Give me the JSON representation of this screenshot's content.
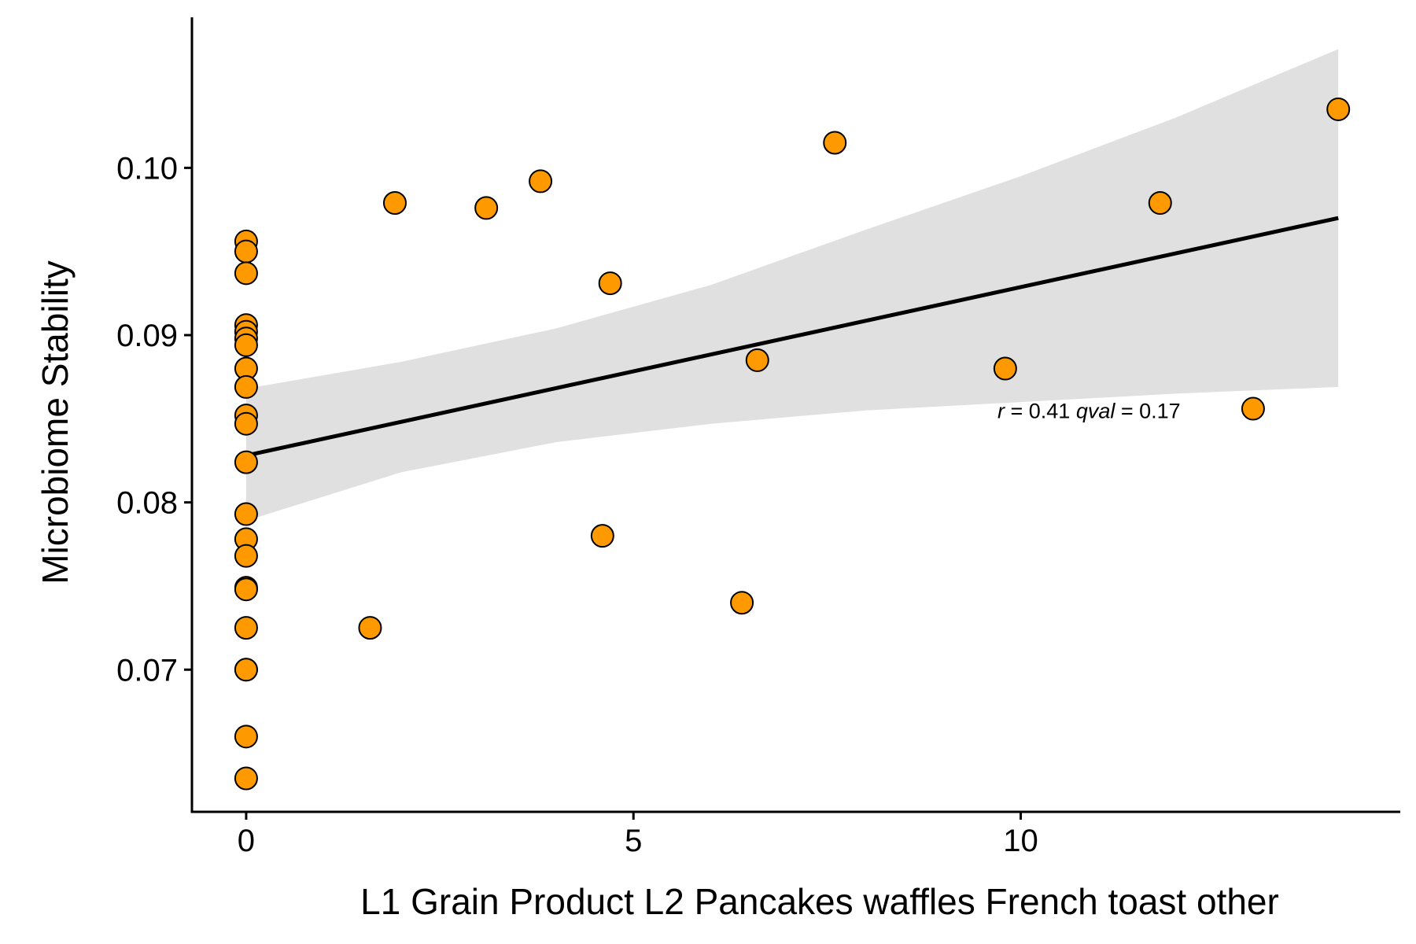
{
  "chart_data": {
    "type": "scatter",
    "title": "",
    "xlabel": "L1 Grain Product  L2 Pancakes waffles French toast other",
    "ylabel": "Microbiome Stability",
    "xlim": [
      -0.7,
      14.9
    ],
    "ylim": [
      0.0615,
      0.109
    ],
    "x_ticks": [
      0,
      5,
      10
    ],
    "x_tick_labels": [
      "0",
      "5",
      "10"
    ],
    "y_ticks": [
      0.07,
      0.08,
      0.09,
      0.1
    ],
    "y_tick_labels": [
      "0.07",
      "0.08",
      "0.09",
      "0.10"
    ],
    "grid": false,
    "legend": "none",
    "point_color": "#FF9900",
    "point_edge_color": "#000000",
    "line_color": "#000000",
    "band_color": "#E0E0E0",
    "points": {
      "x": [
        0,
        0,
        0,
        0,
        0,
        0,
        0,
        0,
        0,
        0,
        0,
        0,
        0,
        0,
        0,
        0,
        0,
        0,
        0,
        0,
        0,
        0,
        1.6,
        1.92,
        3.1,
        3.8,
        4.6,
        4.7,
        6.4,
        6.6,
        7.6,
        9.8,
        11.8,
        13.0,
        14.1
      ],
      "y": [
        0.0956,
        0.095,
        0.0937,
        0.0906,
        0.0902,
        0.0898,
        0.0894,
        0.088,
        0.0869,
        0.0852,
        0.0847,
        0.0824,
        0.0793,
        0.0778,
        0.0768,
        0.0749,
        0.0748,
        0.0725,
        0.07,
        0.066,
        0.0635,
        0.07,
        0.0725,
        0.0979,
        0.0976,
        0.0992,
        0.078,
        0.0931,
        0.074,
        0.0885,
        0.1015,
        0.088,
        0.0979,
        0.0856,
        0.1035
      ]
    },
    "regression": {
      "x": [
        0,
        14.1
      ],
      "y": [
        0.0828,
        0.097
      ]
    },
    "confidence_band": {
      "x": [
        0,
        2,
        4,
        6,
        8,
        10,
        12,
        14.1
      ],
      "upper": [
        0.0868,
        0.0884,
        0.0904,
        0.093,
        0.0963,
        0.0995,
        0.103,
        0.1071
      ],
      "lower": [
        0.0789,
        0.0818,
        0.0836,
        0.0847,
        0.0855,
        0.086,
        0.0865,
        0.0869
      ]
    },
    "annotation": {
      "r_symbol": "r",
      "r_text": " = 0.41 ",
      "q_symbol": "qval",
      "q_text": " = 0.17",
      "x": 9.7,
      "y": 0.0855
    }
  }
}
